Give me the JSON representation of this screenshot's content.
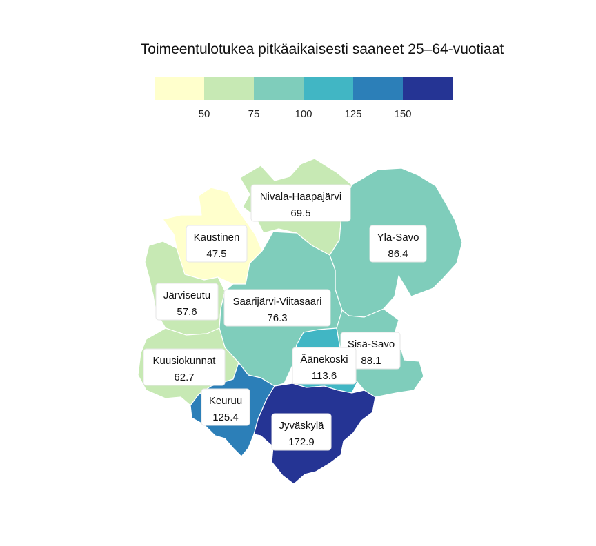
{
  "title": "Toimeentulotukea pitkäaikaisesti saaneet 25–64-vuotiaat",
  "legend": {
    "colors": [
      "#ffffcc",
      "#c7e9b4",
      "#7fcdbb",
      "#41b6c4",
      "#2c7fb8",
      "#253494"
    ],
    "ticks": [
      "50",
      "75",
      "100",
      "125",
      "150"
    ],
    "breaks": [
      50,
      75,
      100,
      125,
      150
    ]
  },
  "regions": [
    {
      "name": "Nivala-Haapajärvi",
      "value": "69.5",
      "color": "#c7e9b4"
    },
    {
      "name": "Kaustinen",
      "value": "47.5",
      "color": "#ffffcc"
    },
    {
      "name": "Ylä-Savo",
      "value": "86.4",
      "color": "#7fcdbb"
    },
    {
      "name": "Järviseutu",
      "value": "57.6",
      "color": "#c7e9b4"
    },
    {
      "name": "Saarijärvi-Viitasaari",
      "value": "76.3",
      "color": "#7fcdbb"
    },
    {
      "name": "Sisä-Savo",
      "value": "88.1",
      "color": "#7fcdbb"
    },
    {
      "name": "Äänekoski",
      "value": "113.6",
      "color": "#41b6c4"
    },
    {
      "name": "Kuusiokunnat",
      "value": "62.7",
      "color": "#c7e9b4"
    },
    {
      "name": "Keuruu",
      "value": "125.4",
      "color": "#2c7fb8"
    },
    {
      "name": "Jyväskylä",
      "value": "172.9",
      "color": "#253494"
    }
  ]
}
